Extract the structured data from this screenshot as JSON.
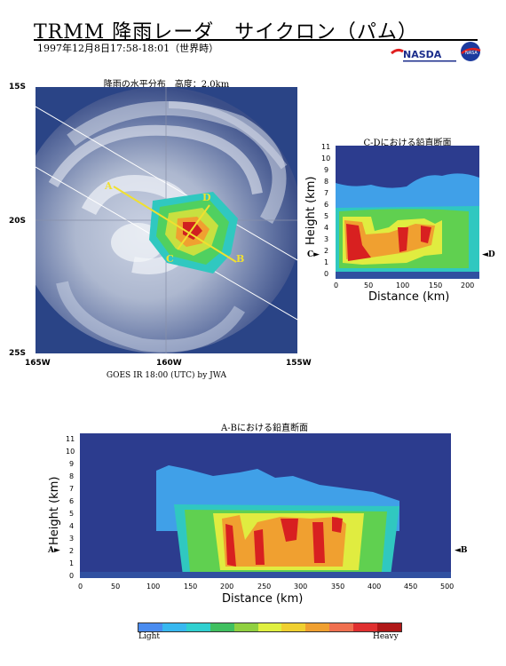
{
  "header": {
    "title": "TRMM 降雨レーダ　サイクロン（パム）",
    "subtitle": "1997年12月8日17:58-18:01（世界時）",
    "logo_text": "NASDA"
  },
  "map": {
    "caption": "降雨の水平分布　高度：2.0km",
    "lat_ticks": [
      "15S",
      "20S",
      "25S"
    ],
    "lon_ticks": [
      "165W",
      "160W",
      "155W"
    ],
    "credit": "GOES IR 18:00 (UTC) by JWA",
    "labels": {
      "a": "A",
      "b": "B",
      "c": "C",
      "d": "D"
    }
  },
  "cd_section": {
    "caption": "C-Dにおける鉛直断面",
    "ylabel": "Height (km)",
    "xlabel": "Distance (km)",
    "y_ticks": [
      "0",
      "1",
      "2",
      "3",
      "4",
      "5",
      "6",
      "7",
      "8",
      "9",
      "10",
      "11"
    ],
    "x_ticks": [
      "0",
      "50",
      "100",
      "150",
      "200"
    ],
    "left_marker": "C",
    "right_marker": "D"
  },
  "ab_section": {
    "caption": "A-Bにおける鉛直断面",
    "ylabel": "Height (km)",
    "xlabel": "Distance (km)",
    "y_ticks": [
      "0",
      "1",
      "2",
      "3",
      "4",
      "5",
      "6",
      "7",
      "8",
      "9",
      "10",
      "11"
    ],
    "x_ticks": [
      "0",
      "50",
      "100",
      "150",
      "200",
      "250",
      "300",
      "350",
      "400",
      "450",
      "500"
    ],
    "left_marker": "A",
    "right_marker": "B"
  },
  "colorbar": {
    "low_label": "Light",
    "high_label": "Heavy",
    "colors": [
      "#4a8cf0",
      "#38b8f0",
      "#30d0d0",
      "#40c060",
      "#90d040",
      "#e0f040",
      "#f0d030",
      "#f0a030",
      "#f07050",
      "#e03030",
      "#b01818"
    ]
  }
}
